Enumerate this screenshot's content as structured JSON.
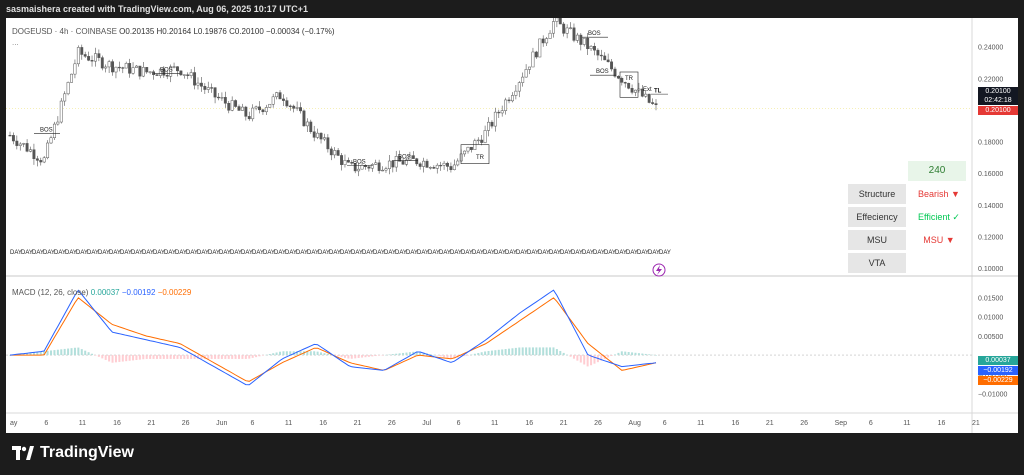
{
  "header": {
    "attribution": "sasmaishera created with TradingView.com, Aug 06, 2025 10:17 UTC+1"
  },
  "legend": {
    "symbol": "DOGEUSD · 4h · COINBASE",
    "open": "O0.20135",
    "high": "H0.20164",
    "low": "L0.19876",
    "close": "C0.20100",
    "change": "−0.00034 (−0.17%)",
    "more": "..."
  },
  "price_axis": {
    "ticks": [
      "0.24000",
      "0.22000",
      "0.20000",
      "0.18000",
      "0.16000",
      "0.14000",
      "0.12000",
      "0.10000"
    ],
    "last_price": "0.20100",
    "countdown": "02:42:18",
    "last_price_red": "0.20100"
  },
  "macd_axis": {
    "ticks": [
      "0.01500",
      "0.01000",
      "0.00500",
      "−0.00500",
      "−0.01000"
    ],
    "hist_value": "0.00037",
    "macd_value": "−0.00192",
    "signal_value": "−0.00229"
  },
  "macd_legend": {
    "title": "MACD (12, 26, close)",
    "hist": "0.00037",
    "macd": "−0.00192",
    "signal": "−0.00229"
  },
  "time_axis": {
    "labels": [
      "ay",
      "6",
      "11",
      "16",
      "21",
      "26",
      "Jun",
      "6",
      "11",
      "16",
      "21",
      "26",
      "Jul",
      "6",
      "11",
      "16",
      "21",
      "26",
      "Aug",
      "6",
      "11",
      "16",
      "21",
      "26",
      "Sep",
      "6",
      "11",
      "16",
      "21"
    ]
  },
  "structure_table": {
    "header": "240",
    "rows": [
      {
        "key": "Structure",
        "value": "Bearish ▼"
      },
      {
        "key": "Effeciency",
        "value": "Efficient ✓"
      },
      {
        "key": "MSU",
        "value": "MSU ▼"
      },
      {
        "key": "VTA",
        "value": ""
      }
    ]
  },
  "chart_marks": {
    "bos": "BOS",
    "tr": "TR",
    "ext": "Ext",
    "tl": "TL",
    "day": "DAY"
  },
  "colors": {
    "up": "#26a69a",
    "down": "#ef5350",
    "macd": "#2962ff",
    "signal": "#ff6d00",
    "candle": "#555555",
    "last_price_bg": "#131722",
    "last_price_red": "#e53935"
  },
  "footer": {
    "logo_text": "TradingView"
  },
  "chart_data": {
    "type": "line",
    "title": "DOGEUSD · 4h · COINBASE",
    "xlabel": "",
    "ylabel": "",
    "ylim": [
      0.1,
      0.255
    ],
    "x": [
      "May 1",
      "May 6",
      "May 11",
      "May 16",
      "May 21",
      "May 26",
      "Jun 1",
      "Jun 6",
      "Jun 11",
      "Jun 16",
      "Jun 21",
      "Jun 26",
      "Jul 1",
      "Jul 6",
      "Jul 11",
      "Jul 16",
      "Jul 21",
      "Jul 26",
      "Aug 1",
      "Aug 6"
    ],
    "series": [
      {
        "name": "",
        "values": [
          0.184,
          0.168,
          0.236,
          0.228,
          0.224,
          0.226,
          0.209,
          0.196,
          0.21,
          0.184,
          0.163,
          0.166,
          0.168,
          0.164,
          0.186,
          0.22,
          0.256,
          0.24,
          0.22,
          0.201
        ]
      }
    ],
    "macd": {
      "x": [
        "May 1",
        "May 6",
        "May 11",
        "May 16",
        "May 21",
        "May 26",
        "Jun 1",
        "Jun 6",
        "Jun 11",
        "Jun 16",
        "Jun 21",
        "Jun 26",
        "Jul 1",
        "Jul 6",
        "Jul 11",
        "Jul 16",
        "Jul 21",
        "Jul 26",
        "Aug 1",
        "Aug 6"
      ],
      "macd": [
        0.0,
        0.001,
        0.017,
        0.006,
        0.004,
        0.002,
        -0.003,
        -0.008,
        -0.001,
        0.003,
        -0.003,
        -0.004,
        0.001,
        -0.002,
        0.004,
        0.011,
        0.017,
        0.0,
        -0.003,
        -0.002
      ],
      "signal": [
        0.0,
        0.0,
        0.015,
        0.008,
        0.005,
        0.003,
        -0.002,
        -0.007,
        -0.002,
        0.002,
        -0.002,
        -0.004,
        0.0,
        -0.001,
        0.003,
        0.009,
        0.015,
        0.003,
        -0.004,
        -0.002
      ]
    }
  }
}
